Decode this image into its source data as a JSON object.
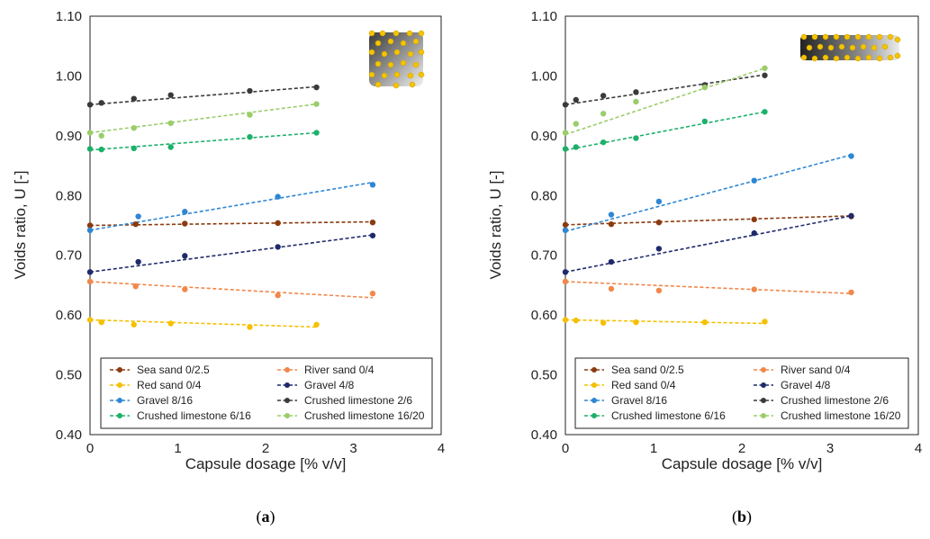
{
  "chart_data": [
    {
      "type": "scatter",
      "panel_label": {
        "open": "(",
        "letter": "a",
        "close": ")"
      },
      "xlabel": "Capsule dosage [% v/v]",
      "ylabel": "Voids ratio, U [-]",
      "xlim": [
        0,
        4
      ],
      "ylim": [
        0.4,
        1.1
      ],
      "xticks": [
        "0",
        "1",
        "2",
        "3",
        "4"
      ],
      "yticks": [
        "0.40",
        "0.50",
        "0.60",
        "0.70",
        "0.80",
        "0.90",
        "1.00",
        "1.10"
      ],
      "grid": false,
      "legend_position": "bottom",
      "inset_icon": "square-capsule-grid-icon",
      "series": [
        {
          "name": "Sea sand 0/2.5",
          "color": "#8B3A0F",
          "x": [
            0,
            0.52,
            1.08,
            2.14,
            3.22
          ],
          "y": [
            0.75,
            0.752,
            0.753,
            0.754,
            0.755
          ],
          "trend": [
            0.75,
            0.756
          ]
        },
        {
          "name": "River sand 0/4",
          "color": "#F0874B",
          "x": [
            0,
            0.52,
            1.08,
            2.14,
            3.22
          ],
          "y": [
            0.656,
            0.648,
            0.643,
            0.633,
            0.636
          ],
          "trend": [
            0.656,
            0.629
          ]
        },
        {
          "name": "Red sand 0/4",
          "color": "#F5C000",
          "x": [
            0,
            0.13,
            0.5,
            0.92,
            1.82,
            2.58
          ],
          "y": [
            0.592,
            0.588,
            0.584,
            0.586,
            0.58,
            0.584
          ],
          "trend": [
            0.592,
            0.58
          ]
        },
        {
          "name": "Gravel 4/8",
          "color": "#1F2A6B",
          "x": [
            0,
            0.55,
            1.08,
            2.14,
            3.22
          ],
          "y": [
            0.672,
            0.689,
            0.699,
            0.714,
            0.733
          ],
          "trend": [
            0.672,
            0.734
          ]
        },
        {
          "name": "Gravel 8/16",
          "color": "#2E86D4",
          "x": [
            0,
            0.55,
            1.08,
            2.14,
            3.22
          ],
          "y": [
            0.742,
            0.765,
            0.773,
            0.798,
            0.818
          ],
          "trend": [
            0.742,
            0.822
          ]
        },
        {
          "name": "Crushed limestone 2/6",
          "color": "#3A3A3A",
          "x": [
            0,
            0.13,
            0.5,
            0.92,
            1.82,
            2.58
          ],
          "y": [
            0.952,
            0.955,
            0.962,
            0.968,
            0.975,
            0.981
          ],
          "trend": [
            0.952,
            0.982
          ]
        },
        {
          "name": "Crushed limestone 6/16",
          "color": "#1DB06A",
          "x": [
            0,
            0.13,
            0.5,
            0.92,
            1.82,
            2.58
          ],
          "y": [
            0.878,
            0.877,
            0.879,
            0.881,
            0.898,
            0.905
          ],
          "trend": [
            0.876,
            0.905
          ]
        },
        {
          "name": "Crushed limestone 16/20",
          "color": "#9ACD6A",
          "x": [
            0,
            0.13,
            0.5,
            0.92,
            1.82,
            2.58
          ],
          "y": [
            0.905,
            0.9,
            0.913,
            0.921,
            0.935,
            0.953
          ],
          "trend": [
            0.905,
            0.953
          ]
        }
      ]
    },
    {
      "type": "scatter",
      "panel_label": {
        "open": "(",
        "letter": "b",
        "close": ")"
      },
      "xlabel": "Capsule dosage [% v/v]",
      "ylabel": "Voids ratio, U [-]",
      "xlim": [
        0,
        4
      ],
      "ylim": [
        0.4,
        1.1
      ],
      "xticks": [
        "0",
        "1",
        "2",
        "3",
        "4"
      ],
      "yticks": [
        "0.40",
        "0.50",
        "0.60",
        "0.70",
        "0.80",
        "0.90",
        "1.00",
        "1.10"
      ],
      "grid": false,
      "legend_position": "bottom",
      "inset_icon": "rectangular-capsule-grid-icon",
      "series": [
        {
          "name": "Sea sand 0/2.5",
          "color": "#8B3A0F",
          "x": [
            0,
            0.52,
            1.06,
            2.14,
            3.24
          ],
          "y": [
            0.751,
            0.752,
            0.755,
            0.76,
            0.765
          ],
          "trend": [
            0.751,
            0.766
          ]
        },
        {
          "name": "River sand 0/4",
          "color": "#F0874B",
          "x": [
            0,
            0.52,
            1.06,
            2.14,
            3.24
          ],
          "y": [
            0.656,
            0.644,
            0.641,
            0.643,
            0.638
          ],
          "trend": [
            0.656,
            0.636
          ]
        },
        {
          "name": "Red sand 0/4",
          "color": "#F5C000",
          "x": [
            0,
            0.12,
            0.43,
            0.8,
            1.58,
            2.26
          ],
          "y": [
            0.592,
            0.591,
            0.587,
            0.588,
            0.588,
            0.589
          ],
          "trend": [
            0.592,
            0.586
          ]
        },
        {
          "name": "Gravel 4/8",
          "color": "#1F2A6B",
          "x": [
            0,
            0.52,
            1.06,
            2.14,
            3.24
          ],
          "y": [
            0.672,
            0.689,
            0.711,
            0.737,
            0.766
          ],
          "trend": [
            0.672,
            0.766
          ]
        },
        {
          "name": "Gravel 8/16",
          "color": "#2E86D4",
          "x": [
            0,
            0.52,
            1.06,
            2.14,
            3.24
          ],
          "y": [
            0.742,
            0.768,
            0.79,
            0.825,
            0.866
          ],
          "trend": [
            0.74,
            0.868
          ]
        },
        {
          "name": "Crushed limestone 2/6",
          "color": "#3A3A3A",
          "x": [
            0,
            0.12,
            0.43,
            0.8,
            1.58,
            2.26
          ],
          "y": [
            0.952,
            0.96,
            0.967,
            0.973,
            0.985,
            1.001
          ],
          "trend": [
            0.952,
            1.002
          ]
        },
        {
          "name": "Crushed limestone 6/16",
          "color": "#1DB06A",
          "x": [
            0,
            0.12,
            0.43,
            0.8,
            1.58,
            2.26
          ],
          "y": [
            0.878,
            0.881,
            0.889,
            0.896,
            0.924,
            0.94
          ],
          "trend": [
            0.876,
            0.94
          ]
        },
        {
          "name": "Crushed limestone 16/20",
          "color": "#9ACD6A",
          "x": [
            0,
            0.12,
            0.43,
            0.8,
            1.58,
            2.26
          ],
          "y": [
            0.905,
            0.92,
            0.937,
            0.957,
            0.981,
            1.013
          ],
          "trend": [
            0.902,
            1.013
          ]
        }
      ]
    }
  ]
}
